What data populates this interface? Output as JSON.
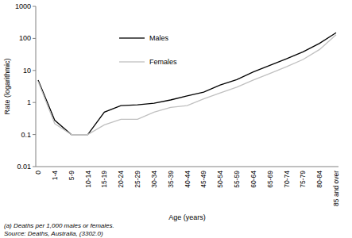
{
  "chart_data": {
    "type": "line",
    "y_label": "Rate (logarithmic)",
    "x_label": "Age (years)",
    "annotations": [
      "(a) Deaths per 1,000 males or females.",
      "Source: Deaths, Australia, (3302.0)"
    ],
    "categories": [
      "0",
      "1-4",
      "5-9",
      "10-14",
      "15-19",
      "20-24",
      "25-29",
      "30-34",
      "35-39",
      "40-44",
      "45-49",
      "50-54",
      "55-59",
      "60-64",
      "65-69",
      "70-74",
      "75-79",
      "80-84",
      "85 and over"
    ],
    "series": [
      {
        "name": "Males",
        "color": "#000000",
        "values": [
          5,
          0.28,
          0.1,
          0.1,
          0.5,
          0.8,
          0.85,
          0.95,
          1.2,
          1.6,
          2.1,
          3.5,
          5.2,
          9,
          14.5,
          23,
          38,
          70,
          150
        ]
      },
      {
        "name": "Females",
        "color": "#c0c0c0",
        "values": [
          4.5,
          0.22,
          0.1,
          0.1,
          0.2,
          0.3,
          0.3,
          0.5,
          0.7,
          0.8,
          1.3,
          2,
          3,
          5,
          8,
          13,
          22,
          45,
          130
        ]
      }
    ],
    "ylim": [
      0.01,
      1000
    ],
    "yticks": [
      0.01,
      0.1,
      1,
      10,
      100,
      1000
    ],
    "log": "y",
    "grid": false,
    "legend": "top"
  }
}
